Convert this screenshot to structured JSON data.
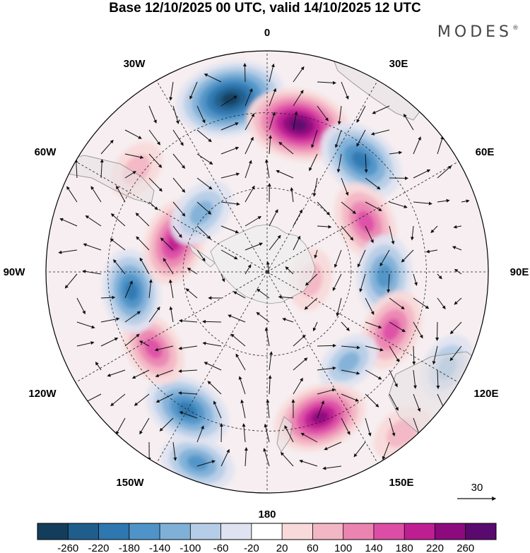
{
  "title": "Base 12/10/2025 00 UTC, valid 14/10/2025 12 UTC",
  "brand": "MODES",
  "brand_mark": "®",
  "longitude_labels": {
    "lon_0": "0",
    "lon_30e": "30E",
    "lon_60e": "60E",
    "lon_90e": "90E",
    "lon_120e": "120E",
    "lon_150e": "150E",
    "lon_180": "180",
    "lon_150w": "150W",
    "lon_120w": "120W",
    "lon_90w": "90W",
    "lon_60w": "60W",
    "lon_30w": "30W"
  },
  "vector_reference": {
    "label": "30",
    "units": "reference wind vector"
  },
  "colorbar": {
    "ticks": [
      "-260",
      "-220",
      "-180",
      "-140",
      "-100",
      "-60",
      "-20",
      "20",
      "60",
      "100",
      "140",
      "180",
      "220",
      "260"
    ],
    "colors": [
      "#143d5c",
      "#1f5e8c",
      "#2e77b0",
      "#4f94c8",
      "#7fb0d8",
      "#b5cde6",
      "#dfe3f1",
      "#ffffff",
      "#f9dada",
      "#f3b6c4",
      "#ec84b2",
      "#dc4ea6",
      "#bf1e93",
      "#8c0a7e",
      "#5a0a6e"
    ]
  },
  "anomaly_cells": [
    {
      "lon": -12,
      "lat_frac": 0.8,
      "value": -270
    },
    {
      "lon": 12,
      "lat_frac": 0.68,
      "value": 250
    },
    {
      "lon": 40,
      "lat_frac": 0.66,
      "value": -190
    },
    {
      "lon": 63,
      "lat_frac": 0.5,
      "value": 150
    },
    {
      "lon": 92,
      "lat_frac": 0.53,
      "value": -150
    },
    {
      "lon": 115,
      "lat_frac": 0.62,
      "value": 150
    },
    {
      "lon": 118,
      "lat_frac": 0.92,
      "value": -90
    },
    {
      "lon": 138,
      "lat_frac": 0.55,
      "value": -80
    },
    {
      "lon": 160,
      "lat_frac": 0.7,
      "value": 200
    },
    {
      "lon": -160,
      "lat_frac": 0.92,
      "value": -120
    },
    {
      "lon": -150,
      "lat_frac": 0.72,
      "value": -180
    },
    {
      "lon": -124,
      "lat_frac": 0.62,
      "value": 130
    },
    {
      "lon": -98,
      "lat_frac": 0.62,
      "value": -160
    },
    {
      "lon": -72,
      "lat_frac": 0.44,
      "value": 170
    },
    {
      "lon": -48,
      "lat_frac": 0.4,
      "value": -110
    },
    {
      "lon": -52,
      "lat_frac": 0.75,
      "value": 60
    },
    {
      "lon": 100,
      "lat_frac": 0.2,
      "value": 60
    },
    {
      "lon": 140,
      "lat_frac": 0.95,
      "value": 70
    }
  ]
}
